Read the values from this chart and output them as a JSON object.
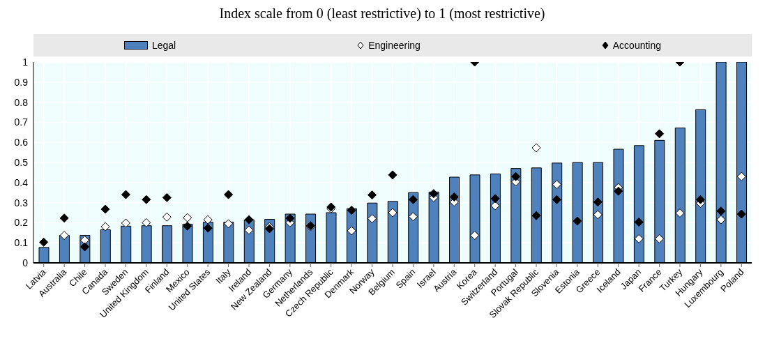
{
  "chart_data": {
    "type": "bar",
    "title": "Index scale from 0 (least restrictive) to 1 (most restrictive)",
    "categories": [
      "Latvia",
      "Australia",
      "Chile",
      "Canada",
      "Sweden",
      "United Kingdom",
      "Finland",
      "Mexico",
      "United States",
      "Italy",
      "Ireland",
      "New Zealand",
      "Germany",
      "Netherlands",
      "Czech Republic",
      "Denmark",
      "Norway",
      "Belgium",
      "Spain",
      "Israel",
      "Austria",
      "Korea",
      "Switzerland",
      "Portugal",
      "Slovak Republic",
      "Slovenia",
      "Estonia",
      "Greece",
      "Iceland",
      "Japan",
      "France",
      "Turkey",
      "Hungary",
      "Luxembourg",
      "Poland"
    ],
    "series": [
      {
        "name": "Legal",
        "color": "#4f81bd",
        "values": [
          0.077,
          0.137,
          0.137,
          0.165,
          0.183,
          0.185,
          0.185,
          0.193,
          0.203,
          0.203,
          0.215,
          0.217,
          0.243,
          0.243,
          0.25,
          0.27,
          0.298,
          0.306,
          0.35,
          0.353,
          0.427,
          0.438,
          0.443,
          0.47,
          0.473,
          0.497,
          0.5,
          0.5,
          0.566,
          0.584,
          0.61,
          0.672,
          0.763,
          1,
          1
        ]
      },
      {
        "name": "Engineering",
        "type": "scatter",
        "color": "#ffffff",
        "values": [
          null,
          0.137,
          0.113,
          0.18,
          0.198,
          0.2,
          0.228,
          0.225,
          0.215,
          0.195,
          0.163,
          0.18,
          0.2,
          0.18,
          0.27,
          0.16,
          0.22,
          0.25,
          0.23,
          0.325,
          0.303,
          0.137,
          0.285,
          0.403,
          0.573,
          0.39,
          null,
          0.24,
          0.375,
          0.12,
          0.12,
          0.248,
          0.297,
          0.215,
          0.43
        ]
      },
      {
        "name": "Accounting",
        "type": "scatter",
        "color": "#000000",
        "values": [
          0.103,
          0.223,
          0.08,
          0.267,
          0.34,
          0.315,
          0.325,
          0.183,
          0.173,
          0.34,
          0.215,
          0.17,
          0.222,
          0.185,
          0.278,
          0.262,
          0.338,
          0.438,
          0.315,
          0.345,
          0.328,
          1,
          0.32,
          0.43,
          0.235,
          0.315,
          0.208,
          0.303,
          0.357,
          0.203,
          0.643,
          1,
          0.315,
          0.258,
          0.243
        ]
      }
    ],
    "ylim": [
      0,
      1
    ],
    "yticks": [
      0,
      0.1,
      0.2,
      0.3,
      0.4,
      0.5,
      0.6,
      0.7,
      0.8,
      0.9,
      1
    ],
    "grid": true,
    "legend": "top",
    "marker": "diamond"
  }
}
